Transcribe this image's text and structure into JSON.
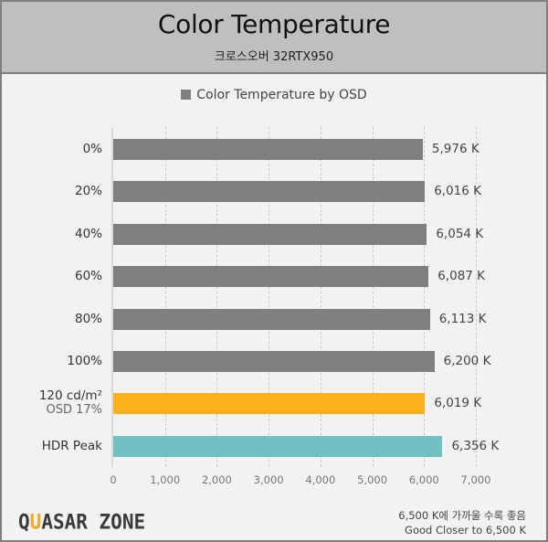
{
  "header": {
    "title": "Color Temperature",
    "subtitle": "크로스오버 32RTX950"
  },
  "legend": {
    "label": "Color Temperature by OSD",
    "color": "#7f7f7f"
  },
  "chart_data": {
    "type": "bar",
    "orientation": "horizontal",
    "title": "Color Temperature",
    "subtitle": "크로스오버 32RTX950",
    "xlabel": "",
    "ylabel": "",
    "xlim": [
      0,
      7000
    ],
    "x_ticks": [
      "0",
      "1,000",
      "2,000",
      "3,000",
      "4,000",
      "5,000",
      "6,000",
      "7,000"
    ],
    "grid": true,
    "legend_position": "top",
    "categories": [
      "0%",
      "20%",
      "40%",
      "60%",
      "80%",
      "100%",
      "120 cd/m² OSD 17%",
      "HDR Peak"
    ],
    "series": [
      {
        "name": "Color Temperature by OSD",
        "values": [
          5976,
          6016,
          6054,
          6087,
          6113,
          6200,
          6019,
          6356
        ],
        "colors": [
          "#7f7f7f",
          "#7f7f7f",
          "#7f7f7f",
          "#7f7f7f",
          "#7f7f7f",
          "#7f7f7f",
          "#fdb01c",
          "#70c0c4"
        ]
      }
    ],
    "value_labels": [
      "5,976 K",
      "6,016 K",
      "6,054 K",
      "6,087 K",
      "6,113 K",
      "6,200 K",
      "6,019 K",
      "6,356 K"
    ]
  },
  "rows": [
    {
      "label": "0%",
      "sub": "",
      "value": 5976,
      "value_label": "5,976 K",
      "color": "#7f7f7f"
    },
    {
      "label": "20%",
      "sub": "",
      "value": 6016,
      "value_label": "6,016 K",
      "color": "#7f7f7f"
    },
    {
      "label": "40%",
      "sub": "",
      "value": 6054,
      "value_label": "6,054 K",
      "color": "#7f7f7f"
    },
    {
      "label": "60%",
      "sub": "",
      "value": 6087,
      "value_label": "6,087 K",
      "color": "#7f7f7f"
    },
    {
      "label": "80%",
      "sub": "",
      "value": 6113,
      "value_label": "6,113 K",
      "color": "#7f7f7f"
    },
    {
      "label": "100%",
      "sub": "",
      "value": 6200,
      "value_label": "6,200 K",
      "color": "#7f7f7f"
    },
    {
      "label": "120 cd/m²",
      "sub": "OSD 17%",
      "value": 6019,
      "value_label": "6,019 K",
      "color": "#fdb01c"
    },
    {
      "label": "HDR Peak",
      "sub": "",
      "value": 6356,
      "value_label": "6,356 K",
      "color": "#70c0c4"
    }
  ],
  "axis": {
    "ticks": [
      "0",
      "1,000",
      "2,000",
      "3,000",
      "4,000",
      "5,000",
      "6,000",
      "7,000"
    ],
    "max": 7000
  },
  "footer": {
    "logo_prefix": "Q",
    "logo_accent": "U",
    "logo_rest": "ASAR ZONE",
    "note_ko": "6,500 K에 가까울 수록 좋음",
    "note_en": "Good Closer to 6,500 K"
  }
}
